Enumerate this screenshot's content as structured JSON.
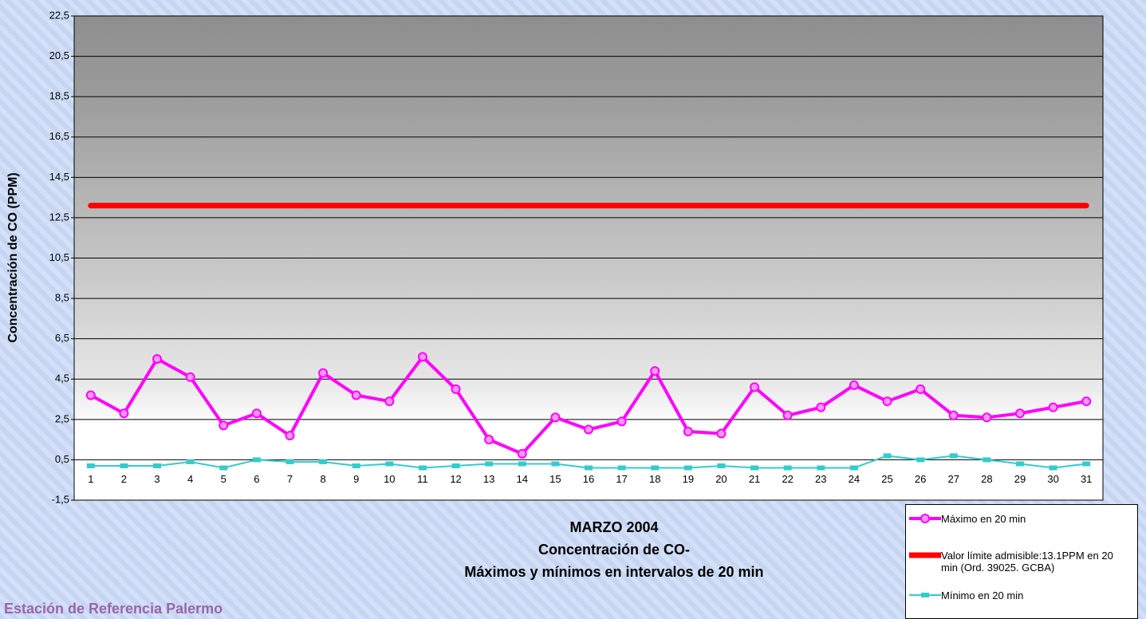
{
  "chart_data": {
    "type": "line",
    "title_lines": [
      "MARZO 2004",
      "Concentración de CO-",
      "Máximos y mínimos en intervalos de 20 min"
    ],
    "footer": "Estación de Referencia Palermo",
    "y_label": "Concentración de CO (PPM)",
    "categories": [
      "1",
      "2",
      "3",
      "4",
      "5",
      "6",
      "7",
      "8",
      "9",
      "10",
      "11",
      "12",
      "13",
      "14",
      "15",
      "16",
      "17",
      "18",
      "19",
      "20",
      "21",
      "22",
      "23",
      "24",
      "25",
      "26",
      "27",
      "28",
      "29",
      "30",
      "31"
    ],
    "ylim": [
      -1.5,
      22.5
    ],
    "yticks": [
      {
        "value": -1.5,
        "label": "-1,5"
      },
      {
        "value": 0.5,
        "label": "0,5"
      },
      {
        "value": 2.5,
        "label": "2,5"
      },
      {
        "value": 4.5,
        "label": "4,5"
      },
      {
        "value": 6.5,
        "label": "6,5"
      },
      {
        "value": 8.5,
        "label": "8,5"
      },
      {
        "value": 10.5,
        "label": "10,5"
      },
      {
        "value": 12.5,
        "label": "12,5"
      },
      {
        "value": 14.5,
        "label": "14,5"
      },
      {
        "value": 16.5,
        "label": "16,5"
      },
      {
        "value": 18.5,
        "label": "18,5"
      },
      {
        "value": 20.5,
        "label": "20,5"
      },
      {
        "value": 22.5,
        "label": "22,5"
      }
    ],
    "grid": true,
    "legend": "bottom-right",
    "series": [
      {
        "name": "Máximo en 20 min",
        "color": "#ff00ff",
        "marker": "circle",
        "values": [
          3.7,
          2.8,
          5.5,
          4.6,
          2.2,
          2.8,
          1.7,
          4.8,
          3.7,
          3.4,
          5.6,
          4.0,
          1.5,
          0.8,
          2.6,
          2.0,
          2.4,
          4.9,
          1.9,
          1.8,
          4.1,
          2.7,
          3.1,
          4.2,
          3.4,
          4.0,
          2.7,
          2.6,
          2.8,
          3.1,
          3.4
        ]
      },
      {
        "name": "Valor límite admisible:13.1PPM en 20 min (Ord. 39025. GCBA)",
        "color": "#ff0000",
        "marker": "none",
        "values": [
          13.1,
          13.1,
          13.1,
          13.1,
          13.1,
          13.1,
          13.1,
          13.1,
          13.1,
          13.1,
          13.1,
          13.1,
          13.1,
          13.1,
          13.1,
          13.1,
          13.1,
          13.1,
          13.1,
          13.1,
          13.1,
          13.1,
          13.1,
          13.1,
          13.1,
          13.1,
          13.1,
          13.1,
          13.1,
          13.1,
          13.1
        ]
      },
      {
        "name": "Mínimo en 20 min",
        "color": "#33cccc",
        "marker": "square",
        "values": [
          0.2,
          0.2,
          0.2,
          0.4,
          0.1,
          0.5,
          0.4,
          0.4,
          0.2,
          0.3,
          0.1,
          0.2,
          0.3,
          0.3,
          0.3,
          0.1,
          0.1,
          0.1,
          0.1,
          0.2,
          0.1,
          0.1,
          0.1,
          0.1,
          0.7,
          0.5,
          0.7,
          0.5,
          0.3,
          0.1,
          0.3
        ]
      }
    ]
  }
}
